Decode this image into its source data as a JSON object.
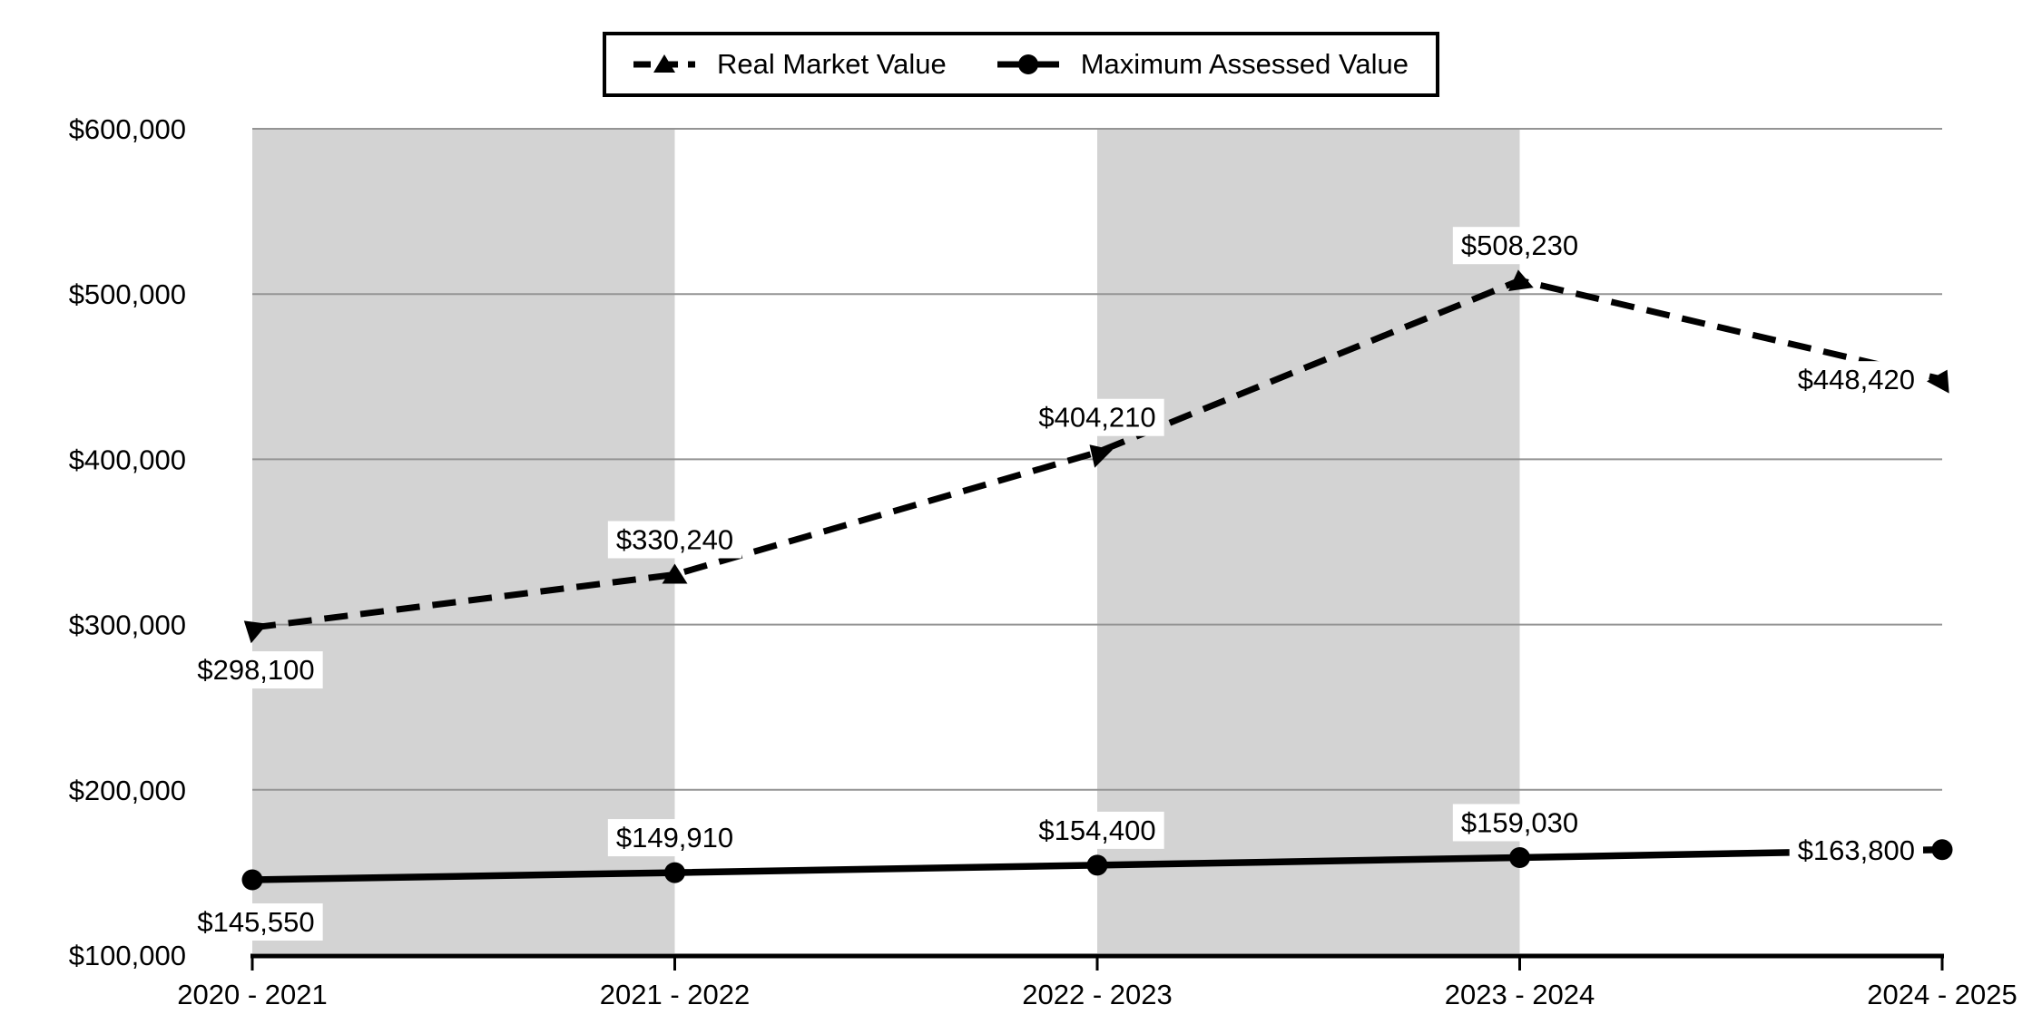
{
  "legend": {
    "items": [
      {
        "label": "Real Market Value"
      },
      {
        "label": "Maximum Assessed Value"
      }
    ]
  },
  "chart_data": {
    "type": "line",
    "title": "",
    "xlabel": "",
    "ylabel": "",
    "categories": [
      "2020 - 2021",
      "2021 - 2022",
      "2022 - 2023",
      "2023 - 2024",
      "2024 - 2025"
    ],
    "series": [
      {
        "name": "Real Market Value",
        "line_style": "dashed",
        "marker": "triangle",
        "color": "#000000",
        "values": [
          298100,
          330240,
          404210,
          508230,
          448420
        ],
        "data_labels": [
          "$298,100",
          "$330,240",
          "$404,210",
          "$508,230",
          "$448,420"
        ],
        "label_placements": [
          "below",
          "above",
          "above",
          "above",
          "left"
        ]
      },
      {
        "name": "Maximum Assessed Value",
        "line_style": "solid",
        "marker": "circle",
        "color": "#000000",
        "values": [
          145550,
          149910,
          154400,
          159030,
          163800
        ],
        "data_labels": [
          "$145,550",
          "$149,910",
          "$154,400",
          "$159,030",
          "$163,800"
        ],
        "label_placements": [
          "below",
          "above",
          "above",
          "above",
          "left"
        ]
      }
    ],
    "ylim": [
      100000,
      600000
    ],
    "y_tick_values": [
      100000,
      200000,
      300000,
      400000,
      500000,
      600000
    ],
    "y_tick_labels": [
      "$100,000",
      "$200,000",
      "$300,000",
      "$400,000",
      "$500,000",
      "$600,000"
    ],
    "grid": "horizontal",
    "legend_position": "top-center",
    "shaded_column_bands": [
      [
        0,
        1
      ],
      [
        2,
        3
      ]
    ],
    "colors": {
      "series": "#000000",
      "band": "#d3d3d3",
      "gridline": "#949494",
      "axis": "#000000",
      "label_background": "#ffffff",
      "background": "#ffffff",
      "text": "#000000"
    }
  }
}
